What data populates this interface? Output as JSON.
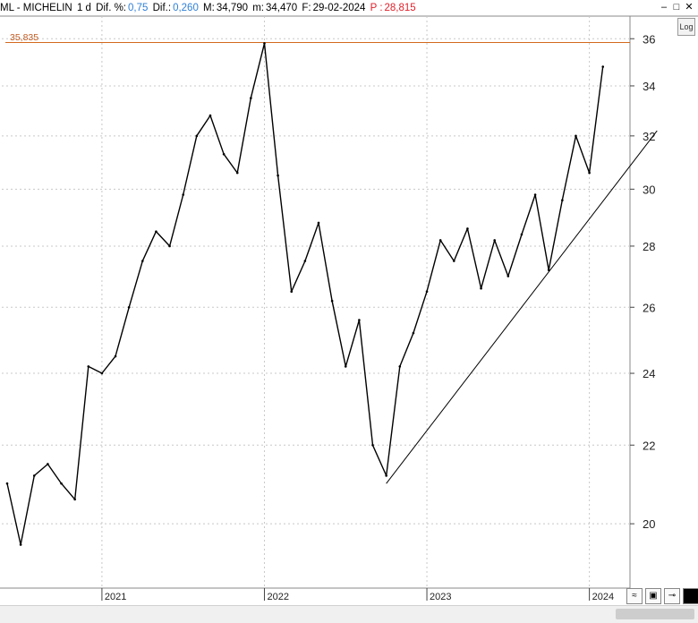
{
  "header": {
    "symbol": "ML - MICHELIN",
    "period": "1 d",
    "dif_pct_label": "Dif. %:",
    "dif_pct_value": "0,75",
    "dif_label": "Dif.:",
    "dif_value": "0,260",
    "max_label": "M:",
    "max_value": "34,790",
    "min_label": "m:",
    "min_value": "34,470",
    "date_label": "F:",
    "date_value": "29-02-2024",
    "p_label": "P :",
    "p_value": "28,815"
  },
  "controls": {
    "log_label": "Log",
    "minimize_icon": "minimize-icon",
    "maximize_icon": "maximize-icon",
    "close_icon": "close-icon"
  },
  "colors": {
    "price_line": "#000000",
    "reference_line": "#d2691e",
    "grid": "#c8c8c8",
    "dif_blue": "#2f7fd6",
    "p_red": "#e0202a"
  },
  "chart_data": {
    "type": "line",
    "title": "ML - MICHELIN",
    "y_scale": "log",
    "ylim": [
      18.5,
      37
    ],
    "y_ticks": [
      20,
      22,
      24,
      26,
      28,
      30,
      32,
      34,
      36
    ],
    "x_tick_labels": [
      "2021",
      "2022",
      "2023",
      "2024"
    ],
    "reference_line": {
      "label": "35,835",
      "value": 35.835
    },
    "series": [
      {
        "values": [
          {
            "x": "2020-06",
            "y": 21.0
          },
          {
            "x": "2020-07",
            "y": 19.5
          },
          {
            "x": "2020-08",
            "y": 21.2
          },
          {
            "x": "2020-09",
            "y": 21.5
          },
          {
            "x": "2020-10",
            "y": 21.0
          },
          {
            "x": "2020-11",
            "y": 20.6
          },
          {
            "x": "2020-12",
            "y": 24.2
          },
          {
            "x": "2021-01",
            "y": 24.0
          },
          {
            "x": "2021-02",
            "y": 24.5
          },
          {
            "x": "2021-03",
            "y": 26.0
          },
          {
            "x": "2021-04",
            "y": 27.5
          },
          {
            "x": "2021-05",
            "y": 28.5
          },
          {
            "x": "2021-06",
            "y": 28.0
          },
          {
            "x": "2021-07",
            "y": 29.8
          },
          {
            "x": "2021-08",
            "y": 32.0
          },
          {
            "x": "2021-09",
            "y": 32.8
          },
          {
            "x": "2021-10",
            "y": 31.3
          },
          {
            "x": "2021-11",
            "y": 30.6
          },
          {
            "x": "2021-12",
            "y": 33.5
          },
          {
            "x": "2022-01",
            "y": 35.8
          },
          {
            "x": "2022-02",
            "y": 30.5
          },
          {
            "x": "2022-03",
            "y": 26.5
          },
          {
            "x": "2022-04",
            "y": 27.5
          },
          {
            "x": "2022-05",
            "y": 28.8
          },
          {
            "x": "2022-06",
            "y": 26.2
          },
          {
            "x": "2022-07",
            "y": 24.2
          },
          {
            "x": "2022-08",
            "y": 25.6
          },
          {
            "x": "2022-09",
            "y": 22.0
          },
          {
            "x": "2022-10",
            "y": 21.2
          },
          {
            "x": "2022-11",
            "y": 24.2
          },
          {
            "x": "2022-12",
            "y": 25.2
          },
          {
            "x": "2023-01",
            "y": 26.5
          },
          {
            "x": "2023-02",
            "y": 28.2
          },
          {
            "x": "2023-03",
            "y": 27.5
          },
          {
            "x": "2023-04",
            "y": 28.6
          },
          {
            "x": "2023-05",
            "y": 26.6
          },
          {
            "x": "2023-06",
            "y": 28.2
          },
          {
            "x": "2023-07",
            "y": 27.0
          },
          {
            "x": "2023-08",
            "y": 28.4
          },
          {
            "x": "2023-09",
            "y": 29.8
          },
          {
            "x": "2023-10",
            "y": 27.2
          },
          {
            "x": "2023-11",
            "y": 29.6
          },
          {
            "x": "2023-12",
            "y": 32.0
          },
          {
            "x": "2024-01",
            "y": 30.6
          },
          {
            "x": "2024-02",
            "y": 34.8
          }
        ]
      }
    ],
    "trendlines": [
      {
        "from": {
          "x": "2022-10",
          "y": 21.0
        },
        "to": {
          "x": "2024-06",
          "y": 32.2
        }
      }
    ],
    "grid": true
  }
}
